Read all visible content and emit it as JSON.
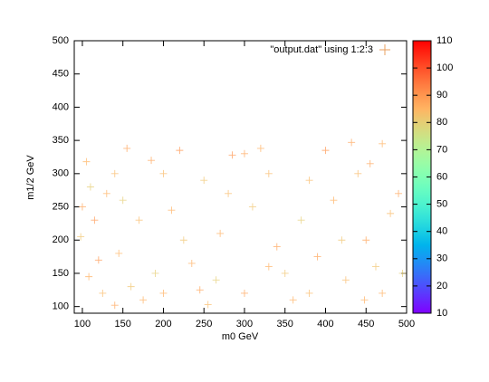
{
  "chart_data": {
    "type": "scatter",
    "xlabel": "m0 GeV",
    "ylabel": "m1/2 GeV",
    "legend": "\"output.dat\" using 1:2:3",
    "legend_position": "top-right",
    "xlim": [
      90,
      500
    ],
    "xticks": [
      100,
      150,
      200,
      250,
      300,
      350,
      400,
      450,
      500
    ],
    "ylim": [
      90,
      500
    ],
    "yticks": [
      100,
      150,
      200,
      250,
      300,
      350,
      400,
      450,
      500
    ],
    "cblim": [
      10,
      110
    ],
    "cbticks": [
      10,
      20,
      30,
      40,
      50,
      60,
      70,
      80,
      90,
      100,
      110
    ],
    "palette": "rainbow",
    "x": [
      105,
      110,
      100,
      115,
      98,
      130,
      140,
      155,
      150,
      145,
      120,
      108,
      125,
      140,
      160,
      175,
      190,
      185,
      200,
      210,
      220,
      225,
      235,
      245,
      255,
      265,
      270,
      280,
      285,
      300,
      310,
      320,
      330,
      340,
      350,
      360,
      370,
      380,
      390,
      400,
      410,
      420,
      432,
      440,
      448,
      455,
      462,
      470,
      480,
      490,
      495,
      470,
      425,
      300,
      200,
      170,
      250,
      330,
      380,
      450
    ],
    "y": [
      318,
      280,
      250,
      230,
      205,
      270,
      300,
      338,
      260,
      180,
      170,
      145,
      120,
      102,
      130,
      110,
      150,
      320,
      300,
      245,
      335,
      200,
      165,
      125,
      103,
      140,
      210,
      270,
      328,
      330,
      250,
      338,
      300,
      190,
      150,
      110,
      230,
      290,
      175,
      335,
      260,
      200,
      347,
      300,
      110,
      315,
      160,
      345,
      240,
      270,
      150,
      120,
      140,
      120,
      120,
      230,
      290,
      160,
      120,
      200
    ],
    "z": [
      85,
      80,
      88,
      90,
      82,
      86,
      84,
      88,
      80,
      85,
      90,
      86,
      84,
      88,
      82,
      86,
      80,
      88,
      84,
      86,
      90,
      82,
      86,
      88,
      84,
      80,
      86,
      84,
      90,
      88,
      82,
      86,
      84,
      88,
      82,
      86,
      80,
      84,
      88,
      90,
      86,
      82,
      88,
      84,
      86,
      88,
      82,
      86,
      84,
      88,
      80,
      86,
      84,
      88,
      86,
      84,
      82,
      86,
      84,
      88
    ]
  }
}
